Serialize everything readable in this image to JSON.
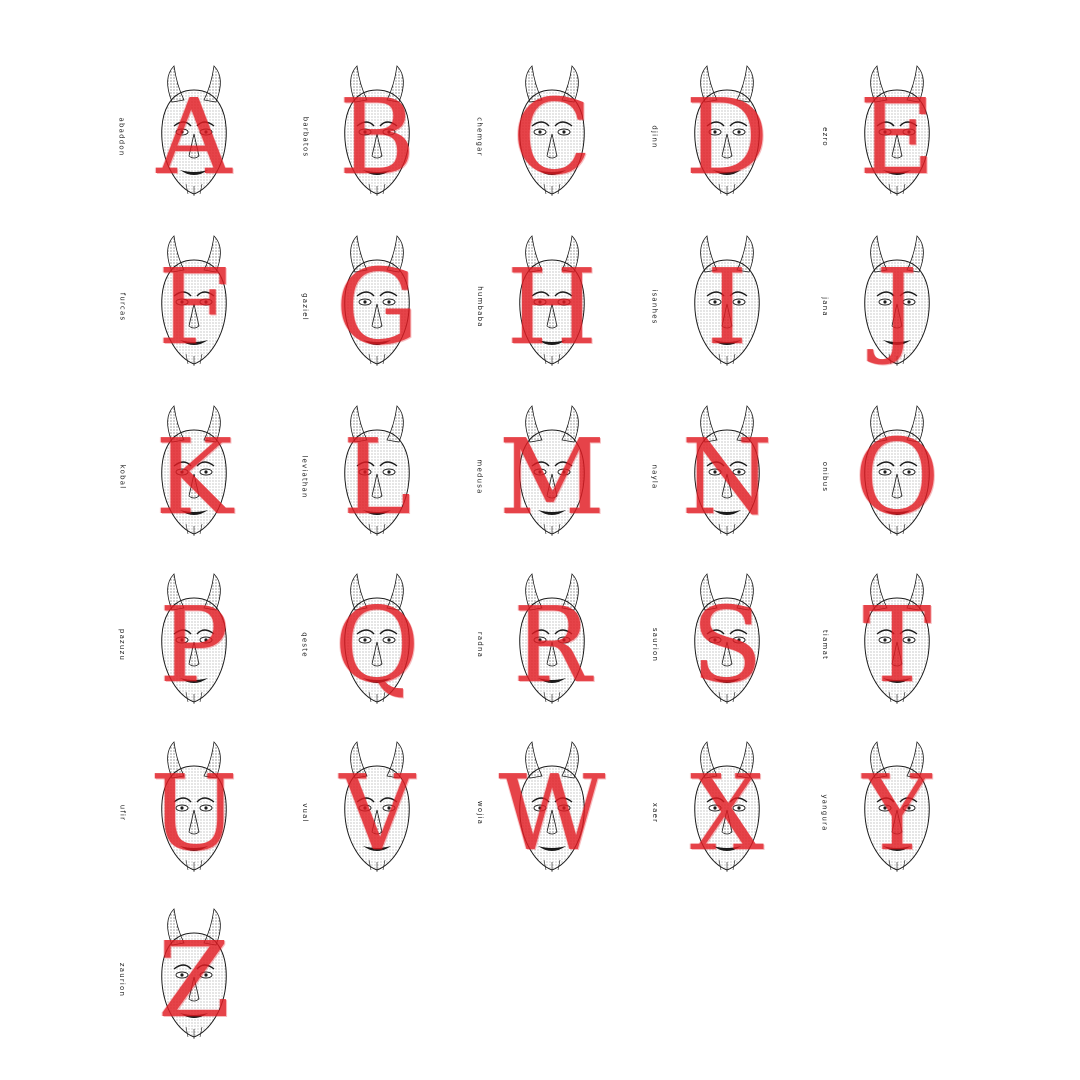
{
  "colors": {
    "letter": "#e11b22",
    "ink": "#1a1a1a",
    "background": "#ffffff"
  },
  "glyphs": [
    {
      "letter": "A",
      "name": "abaddon",
      "icon": "horned-demon-mask-icon"
    },
    {
      "letter": "B",
      "name": "barbatos",
      "icon": "spiked-grinning-mask-icon"
    },
    {
      "letter": "C",
      "name": "chemgar",
      "icon": "pointed-crest-mask-icon"
    },
    {
      "letter": "D",
      "name": "djinn",
      "icon": "third-eye-mask-icon"
    },
    {
      "letter": "E",
      "name": "ezro",
      "icon": "crowned-bearded-mask-icon"
    },
    {
      "letter": "F",
      "name": "furcas",
      "icon": "long-bearded-mask-icon"
    },
    {
      "letter": "G",
      "name": "gaziel",
      "icon": "hooded-mask-icon"
    },
    {
      "letter": "H",
      "name": "humbaba",
      "icon": "screaming-mask-icon"
    },
    {
      "letter": "I",
      "name": "isanhes",
      "icon": "eared-beast-mask-icon"
    },
    {
      "letter": "J",
      "name": "jana",
      "icon": "two-faced-mask-icon"
    },
    {
      "letter": "K",
      "name": "kobal",
      "icon": "horned-skull-mask-icon"
    },
    {
      "letter": "L",
      "name": "leviathan",
      "icon": "dragon-head-icon"
    },
    {
      "letter": "M",
      "name": "medusa",
      "icon": "serpent-hair-mask-icon"
    },
    {
      "letter": "N",
      "name": "nayla",
      "icon": "fanged-horn-mask-icon"
    },
    {
      "letter": "O",
      "name": "onibus",
      "icon": "oni-horned-mask-icon"
    },
    {
      "letter": "P",
      "name": "pazuzu",
      "icon": "ram-horned-mask-icon"
    },
    {
      "letter": "Q",
      "name": "qeste",
      "icon": "spiked-halo-mask-icon"
    },
    {
      "letter": "R",
      "name": "radna",
      "icon": "long-snout-mask-icon"
    },
    {
      "letter": "S",
      "name": "saurion",
      "icon": "split-face-mask-icon"
    },
    {
      "letter": "T",
      "name": "tiamat",
      "icon": "feathered-mask-icon"
    },
    {
      "letter": "U",
      "name": "ufir",
      "icon": "crested-mask-icon"
    },
    {
      "letter": "V",
      "name": "vual",
      "icon": "serpent-crown-mask-icon"
    },
    {
      "letter": "W",
      "name": "wojia",
      "icon": "earringed-mask-icon"
    },
    {
      "letter": "X",
      "name": "xaer",
      "icon": "beast-mask-icon"
    },
    {
      "letter": "Y",
      "name": "yangura",
      "icon": "bearded-sage-mask-icon"
    },
    {
      "letter": "Z",
      "name": "zaurion",
      "icon": "split-face-mask-icon"
    }
  ]
}
